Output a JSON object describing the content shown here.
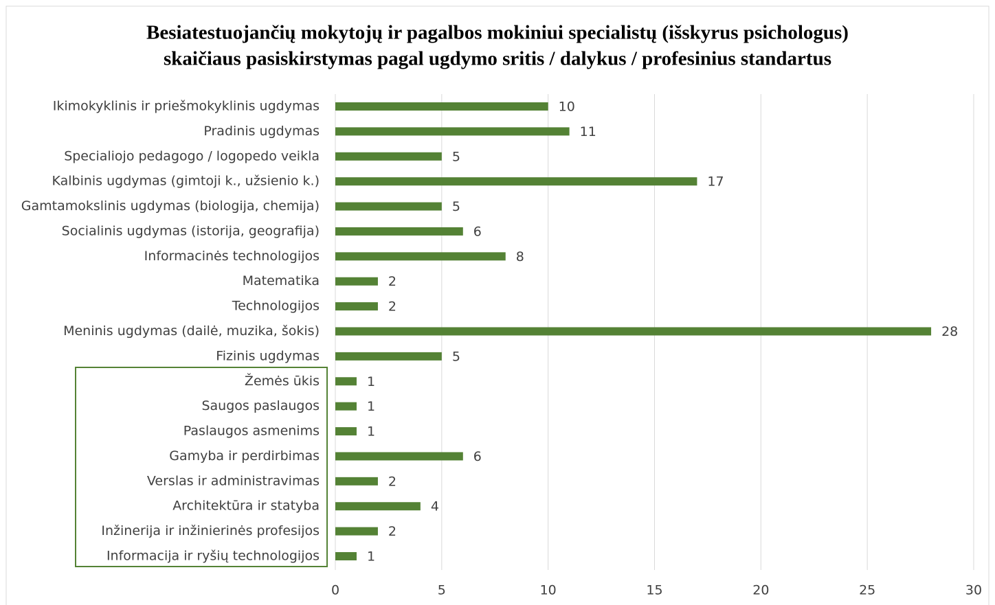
{
  "chart_data": {
    "type": "bar",
    "orientation": "horizontal",
    "title": [
      "Besiatestuojančių mokytojų ir pagalbos mokiniui specialistų (išskyrus psichologus)",
      "skaičiaus pasiskirstymas pagal ugdymo sritis / dalykus / profesinius standartus"
    ],
    "categories": [
      "Ikimokyklinis ir priešmokyklinis ugdymas",
      "Pradinis ugdymas",
      "Specialiojo pedagogo / logopedo veikla",
      "Kalbinis ugdymas (gimtoji k., užsienio k.)",
      "Gamtamokslinis ugdymas (biologija, chemija)",
      "Socialinis ugdymas (istorija, geografija)",
      "Informacinės technologijos",
      "Matematika",
      "Technologijos",
      "Meninis ugdymas (dailė, muzika, šokis)",
      "Fizinis ugdymas",
      "Žemės ūkis",
      "Saugos paslaugos",
      "Paslaugos asmenims",
      "Gamyba ir perdirbimas",
      "Verslas ir administravimas",
      "Architektūra ir statyba",
      "Inžinerija ir inžinierinės profesijos",
      "Informacija ir ryšių technologijos"
    ],
    "values": [
      10,
      11,
      5,
      17,
      5,
      6,
      8,
      2,
      2,
      28,
      5,
      1,
      1,
      1,
      6,
      2,
      4,
      2,
      1
    ],
    "color": "#548235",
    "xlim": [
      0,
      30
    ],
    "xticks": [
      0,
      5,
      10,
      15,
      20,
      25,
      30
    ],
    "grid": true
  }
}
